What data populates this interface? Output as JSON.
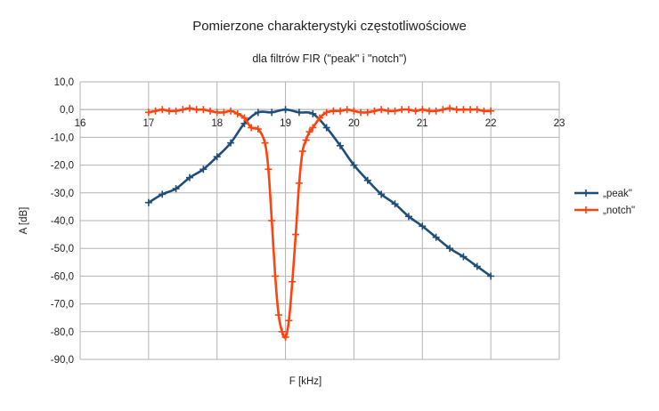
{
  "chart_data": {
    "type": "line",
    "title": "Pomierzone charakterystyki częstotliwościowe",
    "subtitle": "dla filtrów FIR (\"peak\" i \"notch\")",
    "xlabel": "F [kHz]",
    "ylabel": "A [dB]",
    "xlim": [
      16,
      23
    ],
    "ylim": [
      -90,
      10
    ],
    "x_ticks": [
      "16",
      "17",
      "18",
      "19",
      "20",
      "21",
      "22",
      "23"
    ],
    "y_ticks": [
      "10,0",
      "0,0",
      "-10,0",
      "-20,0",
      "-30,0",
      "-40,0",
      "-50,0",
      "-60,0",
      "-70,0",
      "-80,0",
      "-90,0"
    ],
    "x_tick_values": [
      16,
      17,
      18,
      19,
      20,
      21,
      22,
      23
    ],
    "y_tick_values": [
      10,
      0,
      -10,
      -20,
      -30,
      -40,
      -50,
      -60,
      -70,
      -80,
      -90
    ],
    "grid": true,
    "legend_position": "right",
    "series": [
      {
        "name": "„peak\"",
        "color": "#1f4e79",
        "x": [
          17.0,
          17.2,
          17.4,
          17.6,
          17.8,
          18.0,
          18.2,
          18.4,
          18.6,
          18.8,
          19.0,
          19.2,
          19.4,
          19.6,
          19.8,
          20.0,
          20.2,
          20.4,
          20.6,
          20.8,
          21.0,
          21.2,
          21.4,
          21.6,
          21.8,
          22.0
        ],
        "y": [
          -33.5,
          -30.5,
          -28.5,
          -24.5,
          -21.5,
          -17.0,
          -12.0,
          -5.0,
          -1.0,
          -1.0,
          0.0,
          -1.0,
          -1.5,
          -6.5,
          -13.0,
          -20.0,
          -25.5,
          -30.5,
          -34.0,
          -38.5,
          -42.0,
          -46.0,
          -50.0,
          -53.0,
          -56.5,
          -60.0
        ]
      },
      {
        "name": "„notch\"",
        "color": "#ff420e",
        "x": [
          17.0,
          17.1,
          17.2,
          17.3,
          17.4,
          17.5,
          17.6,
          17.7,
          17.8,
          17.9,
          18.0,
          18.1,
          18.2,
          18.3,
          18.4,
          18.5,
          18.6,
          18.7,
          18.75,
          18.8,
          18.85,
          18.9,
          18.95,
          19.0,
          19.05,
          19.1,
          19.15,
          19.2,
          19.25,
          19.3,
          19.35,
          19.4,
          19.5,
          19.6,
          19.7,
          19.8,
          19.9,
          20.0,
          20.1,
          20.2,
          20.3,
          20.4,
          20.5,
          20.6,
          20.7,
          20.8,
          20.9,
          21.0,
          21.1,
          21.2,
          21.3,
          21.4,
          21.5,
          21.6,
          21.7,
          21.8,
          21.9,
          22.0
        ],
        "y": [
          -1.0,
          -0.5,
          0.0,
          -0.5,
          -0.5,
          0.0,
          0.5,
          0.0,
          0.0,
          -0.5,
          -1.0,
          -1.0,
          -0.5,
          -1.5,
          -3.0,
          -6.5,
          -7.0,
          -12.0,
          -21.5,
          -40.0,
          -60.0,
          -74.0,
          -80.0,
          -82.0,
          -76.0,
          -62.0,
          -45.0,
          -26.5,
          -15.0,
          -11.0,
          -8.0,
          -6.5,
          -3.0,
          -1.0,
          -0.5,
          -0.5,
          0.0,
          -0.5,
          -1.0,
          -1.0,
          -0.5,
          0.0,
          -0.5,
          -0.5,
          0.0,
          0.0,
          -0.5,
          0.0,
          -0.5,
          -0.5,
          0.0,
          0.5,
          0.0,
          0.0,
          0.0,
          0.0,
          -0.5,
          -0.5
        ]
      }
    ]
  }
}
